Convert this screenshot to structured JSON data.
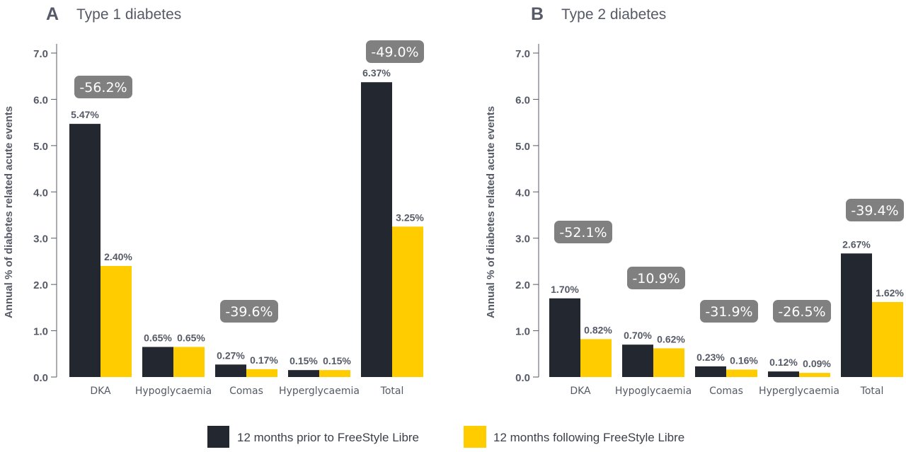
{
  "legend": [
    {
      "label": "12 months prior to FreeStyle Libre",
      "color": "#23272f"
    },
    {
      "label": "12 months following FreeStyle Libre",
      "color": "#ffcc00"
    }
  ],
  "badge_color": "#808080",
  "chart_data": [
    {
      "type": "bar",
      "panel": "A",
      "title": "Type 1 diabetes",
      "ylabel": "Annual % of diabetes related acute events",
      "ylim": [
        0,
        7
      ],
      "yticks": [
        "0.0",
        "1.0",
        "2.0",
        "3.0",
        "4.0",
        "5.0",
        "6.0",
        "7.0"
      ],
      "categories": [
        "DKA",
        "Hypoglycaemia",
        "Comas",
        "Hyperglycaemia",
        "Total"
      ],
      "series": [
        {
          "name": "12 months prior to FreeStyle Libre",
          "values": [
            5.47,
            0.65,
            0.27,
            0.15,
            6.37
          ],
          "labels": [
            "5.47%",
            "0.65%",
            "0.27%",
            "0.15%",
            "6.37%"
          ]
        },
        {
          "name": "12 months following FreeStyle Libre",
          "values": [
            2.4,
            0.65,
            0.17,
            0.15,
            3.25
          ],
          "labels": [
            "2.40%",
            "0.65%",
            "0.17%",
            "0.15%",
            "3.25%"
          ]
        }
      ],
      "annotations": [
        "-56.2%",
        "",
        "-39.6%",
        "",
        "-49.0%"
      ]
    },
    {
      "type": "bar",
      "panel": "B",
      "title": "Type 2 diabetes",
      "ylabel": "Annual % of diabetes related acute events",
      "ylim": [
        0,
        7
      ],
      "yticks": [
        "0.0",
        "1.0",
        "2.0",
        "3.0",
        "4.0",
        "5.0",
        "6.0",
        "7.0"
      ],
      "categories": [
        "DKA",
        "Hypoglycaemia",
        "Comas",
        "Hyperglycaemia",
        "Total"
      ],
      "series": [
        {
          "name": "12 months prior to FreeStyle Libre",
          "values": [
            1.7,
            0.7,
            0.23,
            0.12,
            2.67
          ],
          "labels": [
            "1.70%",
            "0.70%",
            "0.23%",
            "0.12%",
            "2.67%"
          ]
        },
        {
          "name": "12 months following FreeStyle Libre",
          "values": [
            0.82,
            0.62,
            0.16,
            0.09,
            1.62
          ],
          "labels": [
            "0.82%",
            "0.62%",
            "0.16%",
            "0.09%",
            "1.62%"
          ]
        }
      ],
      "annotations": [
        "-52.1%",
        "-10.9%",
        "-31.9%",
        "-26.5%",
        "-39.4%"
      ]
    }
  ]
}
